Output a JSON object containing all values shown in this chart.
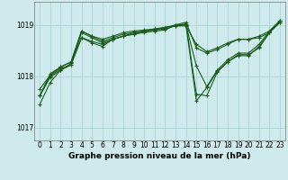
{
  "title": "Graphe pression niveau de la mer (hPa)",
  "bg_color": "#ceeaec",
  "grid_color": "#aad4d8",
  "line_color": "#1a5c1a",
  "xlim": [
    -0.5,
    23.5
  ],
  "ylim": [
    1016.75,
    1019.45
  ],
  "yticks": [
    1017,
    1018,
    1019
  ],
  "xticks": [
    0,
    1,
    2,
    3,
    4,
    5,
    6,
    7,
    8,
    9,
    10,
    11,
    12,
    13,
    14,
    15,
    16,
    17,
    18,
    19,
    20,
    21,
    22,
    23
  ],
  "series": [
    [
      1017.62,
      1018.0,
      1018.15,
      1018.22,
      1018.85,
      1018.75,
      1018.65,
      1018.72,
      1018.78,
      1018.82,
      1018.85,
      1018.88,
      1018.9,
      1019.0,
      1019.05,
      1018.55,
      1018.45,
      1018.52,
      1018.62,
      1018.72,
      1018.72,
      1018.75,
      1018.85,
      1019.05
    ],
    [
      1017.62,
      1018.05,
      1018.18,
      1018.28,
      1018.88,
      1018.78,
      1018.72,
      1018.78,
      1018.85,
      1018.88,
      1018.9,
      1018.92,
      1018.95,
      1019.0,
      1019.0,
      1018.2,
      1017.8,
      1018.12,
      1018.32,
      1018.45,
      1018.45,
      1018.62,
      1018.88,
      1019.08
    ],
    [
      1017.45,
      1017.88,
      1018.12,
      1018.22,
      1018.75,
      1018.68,
      1018.62,
      1018.72,
      1018.78,
      1018.85,
      1018.88,
      1018.9,
      1018.95,
      1018.98,
      1019.02,
      1017.65,
      1017.62,
      1018.08,
      1018.28,
      1018.4,
      1018.4,
      1018.58,
      1018.85,
      1019.08
    ],
    [
      1017.62,
      1017.98,
      1018.12,
      1018.25,
      1018.75,
      1018.65,
      1018.58,
      1018.72,
      1018.78,
      1018.82,
      1018.88,
      1018.9,
      1018.92,
      1018.98,
      1019.0,
      1017.52,
      1017.78,
      1018.1,
      1018.28,
      1018.42,
      1018.42,
      1018.55,
      1018.85,
      1019.05
    ],
    [
      1017.75,
      1018.02,
      1018.18,
      1018.28,
      1018.88,
      1018.78,
      1018.68,
      1018.75,
      1018.82,
      1018.85,
      1018.88,
      1018.92,
      1018.95,
      1018.98,
      1018.98,
      1018.62,
      1018.48,
      1018.55,
      1018.65,
      1018.72,
      1018.72,
      1018.78,
      1018.88,
      1019.08
    ]
  ],
  "marker": "+",
  "markersize": 3,
  "linewidth": 0.8,
  "tick_fontsize": 5.5,
  "label_fontsize": 6.5
}
